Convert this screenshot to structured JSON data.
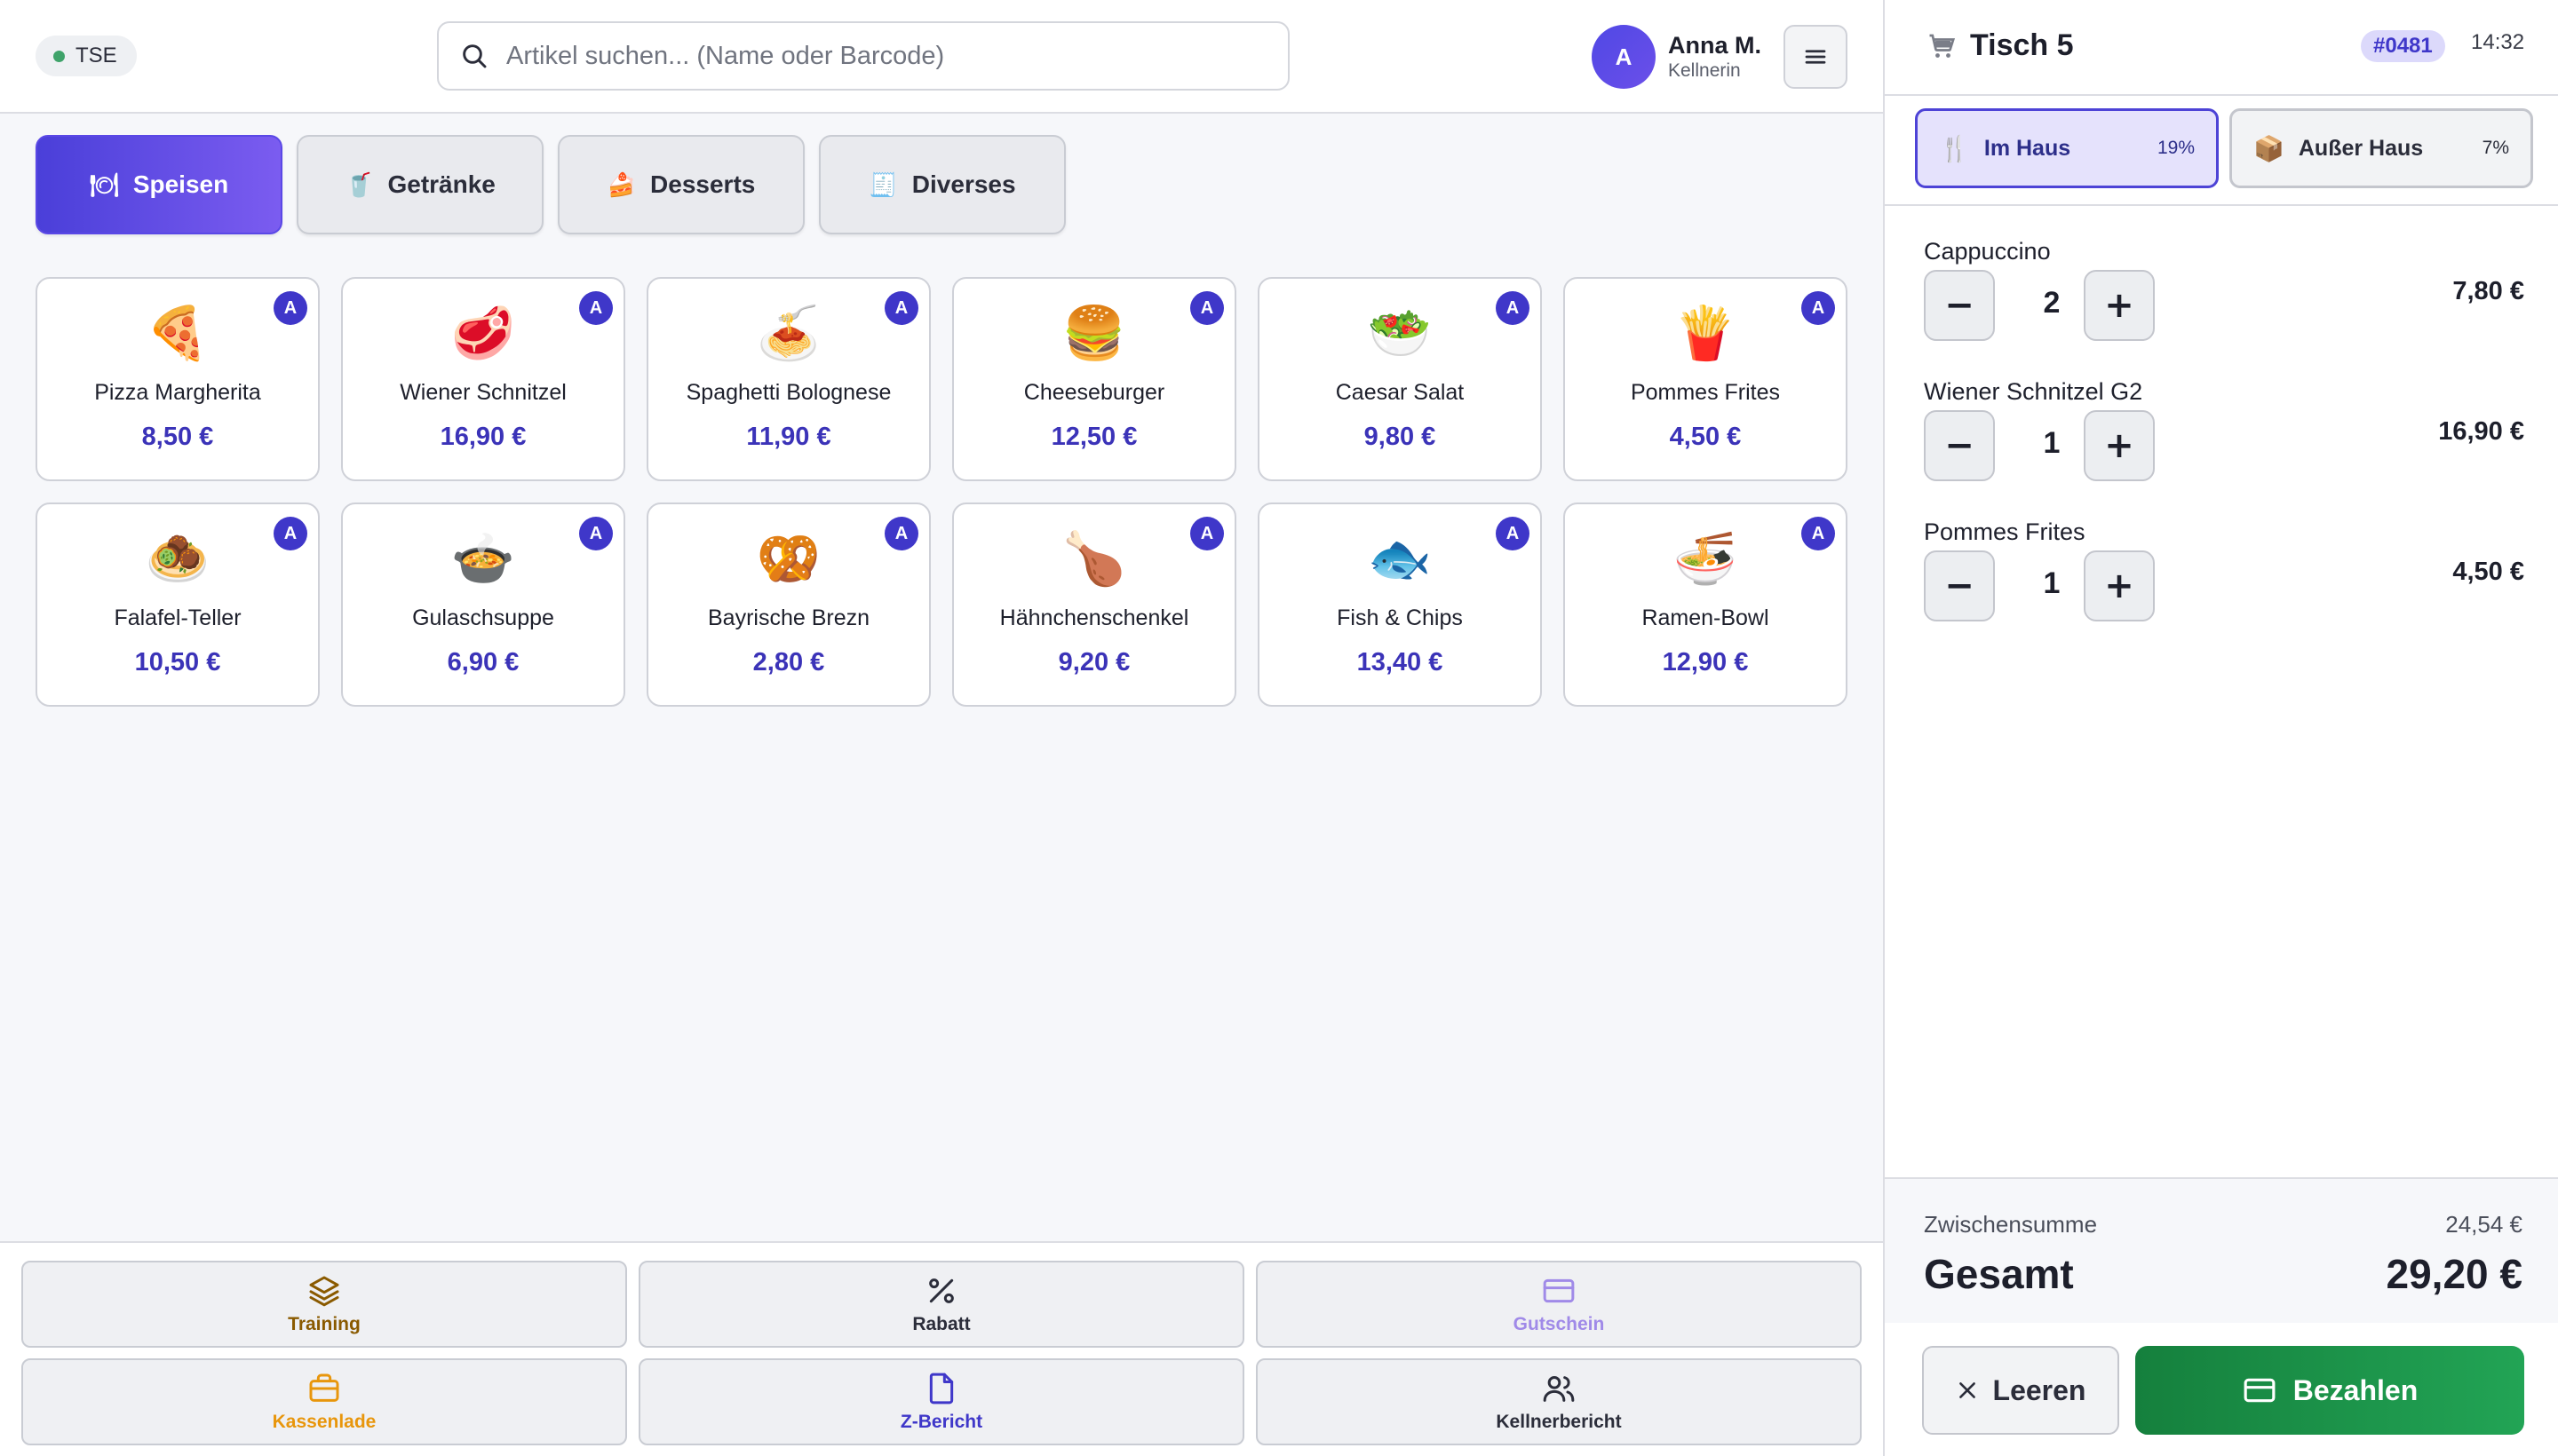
{
  "header": {
    "tse_label": "TSE",
    "search_placeholder": "Artikel suchen... (Name oder Barcode)",
    "user": {
      "initial": "A",
      "name": "Anna M.",
      "role": "Kellnerin"
    }
  },
  "categories": [
    {
      "label": "Speisen",
      "icon": "plate-icon",
      "glyph": "🍽",
      "active": true
    },
    {
      "label": "Getränke",
      "icon": "drink-icon",
      "glyph": "🥤",
      "active": false
    },
    {
      "label": "Desserts",
      "icon": "cake-icon",
      "glyph": "🍰",
      "active": false
    },
    {
      "label": "Diverses",
      "icon": "receipt-icon",
      "glyph": "🧾",
      "active": false
    }
  ],
  "products": [
    {
      "name": "Pizza Margherita",
      "price": "8,50 €",
      "emoji": "🍕",
      "badge": "A"
    },
    {
      "name": "Wiener Schnitzel",
      "price": "16,90 €",
      "emoji": "🥩",
      "badge": "A"
    },
    {
      "name": "Spaghetti Bolognese",
      "price": "11,90 €",
      "emoji": "🍝",
      "badge": "A"
    },
    {
      "name": "Cheeseburger",
      "price": "12,50 €",
      "emoji": "🍔",
      "badge": "A"
    },
    {
      "name": "Caesar Salat",
      "price": "9,80 €",
      "emoji": "🥗",
      "badge": "A"
    },
    {
      "name": "Pommes Frites",
      "price": "4,50 €",
      "emoji": "🍟",
      "badge": "A"
    },
    {
      "name": "Falafel-Teller",
      "price": "10,50 €",
      "emoji": "🧆",
      "badge": "A"
    },
    {
      "name": "Gulaschsuppe",
      "price": "6,90 €",
      "emoji": "🍲",
      "badge": "A"
    },
    {
      "name": "Bayrische Brezn",
      "price": "2,80 €",
      "emoji": "🥨",
      "badge": "A"
    },
    {
      "name": "Hähnchenschenkel",
      "price": "9,20 €",
      "emoji": "🍗",
      "badge": "A"
    },
    {
      "name": "Fish & Chips",
      "price": "13,40 €",
      "emoji": "🐟",
      "badge": "A"
    },
    {
      "name": "Ramen-Bowl",
      "price": "12,90 €",
      "emoji": "🍜",
      "badge": "A"
    }
  ],
  "actions": [
    {
      "label": "Training",
      "icon": "layers-icon",
      "color": "#8a5a00"
    },
    {
      "label": "Rabatt",
      "icon": "percent-icon",
      "color": "#2b2d3a"
    },
    {
      "label": "Gutschein",
      "icon": "card-icon",
      "color": "#a08ae8"
    },
    {
      "label": "Kassenlade",
      "icon": "briefcase-icon",
      "color": "#e8960c"
    },
    {
      "label": "Z-Bericht",
      "icon": "document-icon",
      "color": "#3f37c9"
    },
    {
      "label": "Kellnerbericht",
      "icon": "users-icon",
      "color": "#2b2d3a"
    }
  ],
  "order": {
    "table": "Tisch 5",
    "number": "#0481",
    "time": "14:32",
    "modes": [
      {
        "label": "Im Haus",
        "rate": "19%",
        "icon": "cutlery-icon",
        "active": true
      },
      {
        "label": "Außer Haus",
        "rate": "7%",
        "icon": "package-icon",
        "active": false
      }
    ],
    "items": [
      {
        "name": "Cappuccino",
        "qty": "2",
        "price": "7,80 €"
      },
      {
        "name": "Wiener Schnitzel G2",
        "qty": "1",
        "price": "16,90 €"
      },
      {
        "name": "Pommes Frites",
        "qty": "1",
        "price": "4,50 €"
      }
    ],
    "subtotal_label": "Zwischensumme",
    "subtotal": "24,54 €",
    "total_label": "Gesamt",
    "total": "29,20 €",
    "clear_label": "Leeren",
    "pay_label": "Bezahlen"
  },
  "colors": {
    "accent": "#4a3fd9",
    "price": "#3b33b8",
    "pay": "#15803d"
  }
}
